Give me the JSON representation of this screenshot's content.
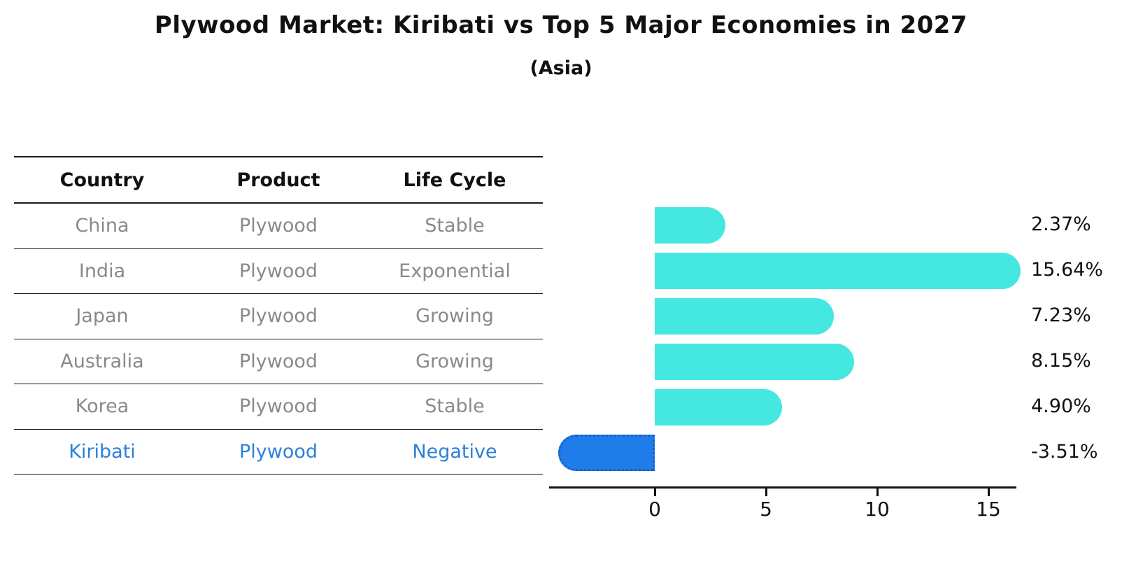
{
  "header": {
    "title": "Plywood Market: Kiribati vs Top 5 Major Economies in 2027",
    "subtitle": "(Asia)"
  },
  "table": {
    "columns": [
      "Country",
      "Product",
      "Life Cycle"
    ],
    "rows": [
      {
        "country": "China",
        "product": "Plywood",
        "life_cycle": "Stable"
      },
      {
        "country": "India",
        "product": "Plywood",
        "life_cycle": "Exponential"
      },
      {
        "country": "Japan",
        "product": "Plywood",
        "life_cycle": "Growing"
      },
      {
        "country": "Australia",
        "product": "Plywood",
        "life_cycle": "Growing"
      },
      {
        "country": "Korea",
        "product": "Plywood",
        "life_cycle": "Stable"
      },
      {
        "country": "Kiribati",
        "product": "Plywood",
        "life_cycle": "Negative"
      }
    ],
    "highlight_row": "Kiribati"
  },
  "chart_data": {
    "type": "bar",
    "orientation": "horizontal",
    "title": "Plywood Market: Kiribati vs Top 5 Major Economies in 2027",
    "subtitle": "(Asia)",
    "categories": [
      "China",
      "India",
      "Japan",
      "Australia",
      "Korea",
      "Kiribati"
    ],
    "values": [
      2.37,
      15.64,
      7.23,
      8.15,
      4.9,
      -3.51
    ],
    "value_labels": [
      "2.37%",
      "15.64%",
      "7.23%",
      "8.15%",
      "4.90%",
      "-3.51%"
    ],
    "unit": "%",
    "xticks": [
      0,
      5,
      10,
      15
    ],
    "xtick_labels": [
      "0",
      "5",
      "10",
      "15"
    ],
    "xlim": [
      -4.75,
      16.3
    ],
    "grid": false,
    "legend": "none",
    "bar_color": "#45e8e0",
    "highlight_color": "#1f7ce8",
    "highlight_index": 5,
    "highlight_text_color": "#2e7fd8",
    "axis_color": "#111111",
    "body_text_color": "#8a8a8a"
  }
}
